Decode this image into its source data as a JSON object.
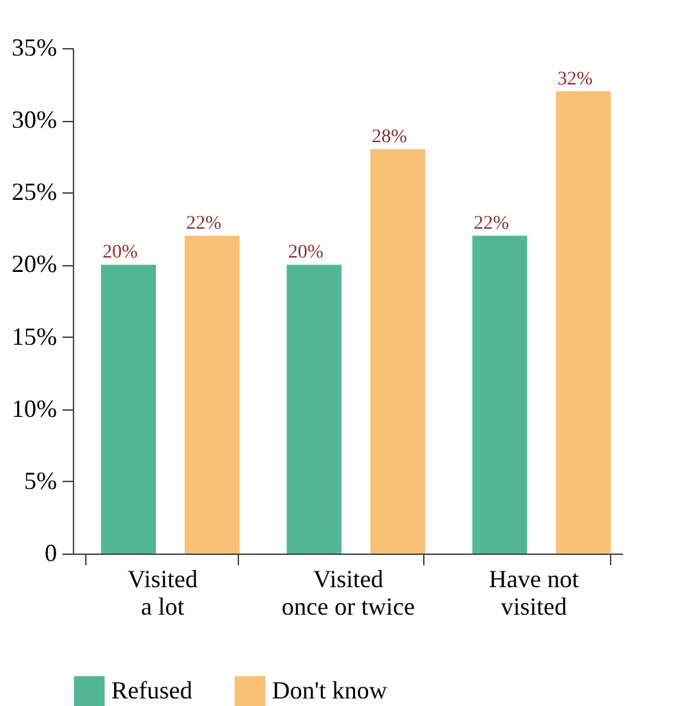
{
  "chart_data": {
    "type": "bar",
    "categories": [
      "Visited\na lot",
      "Visited\nonce or twice",
      "Have not\nvisited"
    ],
    "series": [
      {
        "name": "Refused",
        "color": "#52b795",
        "values": [
          20,
          20,
          22
        ],
        "value_labels": [
          "20%",
          "20%",
          "22%"
        ]
      },
      {
        "name": "Don't know",
        "color": "#f9c176",
        "values": [
          22,
          28,
          32
        ],
        "value_labels": [
          "22%",
          "28%",
          "32%"
        ]
      }
    ],
    "ylim": [
      0,
      35
    ],
    "yticks": [
      0,
      {
        "value": 5,
        "label": "5%"
      },
      {
        "value": 10,
        "label": "10%"
      },
      {
        "value": 15,
        "label": "15%"
      },
      {
        "value": 20,
        "label": "20%"
      },
      {
        "value": 25,
        "label": "25%"
      },
      {
        "value": 30,
        "label": "30%"
      },
      {
        "value": 35,
        "label": "35%"
      }
    ],
    "grid": false,
    "legend": "bottom"
  }
}
